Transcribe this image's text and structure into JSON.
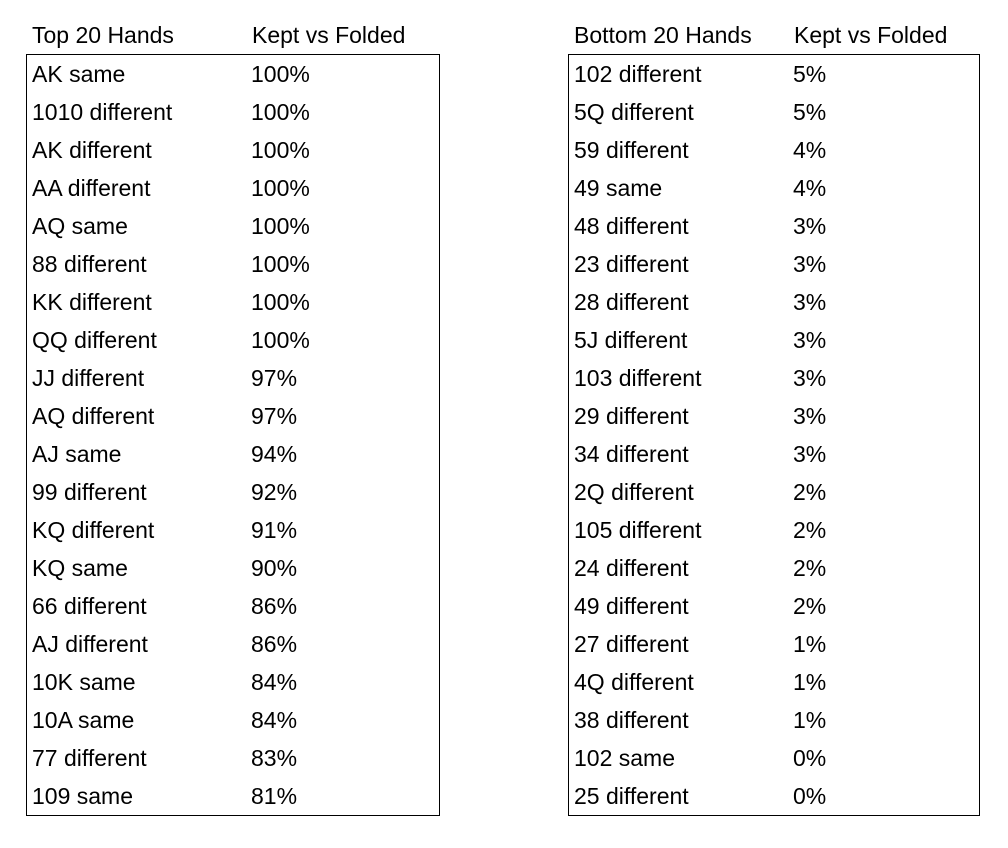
{
  "top_table": {
    "headers": [
      "Top 20 Hands",
      "Kept vs Folded"
    ],
    "rows": [
      [
        "AK same",
        "100%"
      ],
      [
        "1010 different",
        "100%"
      ],
      [
        "AK different",
        "100%"
      ],
      [
        "AA different",
        "100%"
      ],
      [
        "AQ same",
        "100%"
      ],
      [
        "88 different",
        "100%"
      ],
      [
        "KK different",
        "100%"
      ],
      [
        "QQ different",
        "100%"
      ],
      [
        "JJ different",
        "97%"
      ],
      [
        "AQ different",
        "97%"
      ],
      [
        "AJ same",
        "94%"
      ],
      [
        "99 different",
        "92%"
      ],
      [
        "KQ different",
        "91%"
      ],
      [
        "KQ same",
        "90%"
      ],
      [
        "66 different",
        "86%"
      ],
      [
        "AJ different",
        "86%"
      ],
      [
        "10K same",
        "84%"
      ],
      [
        "10A same",
        "84%"
      ],
      [
        "77 different",
        "83%"
      ],
      [
        "109 same",
        "81%"
      ]
    ]
  },
  "bottom_table": {
    "headers": [
      "Bottom 20 Hands",
      "Kept vs Folded"
    ],
    "rows": [
      [
        "102 different",
        "5%"
      ],
      [
        "5Q different",
        "5%"
      ],
      [
        "59 different",
        "4%"
      ],
      [
        "49 same",
        "4%"
      ],
      [
        "48 different",
        "3%"
      ],
      [
        "23 different",
        "3%"
      ],
      [
        "28 different",
        "3%"
      ],
      [
        "5J different",
        "3%"
      ],
      [
        "103 different",
        "3%"
      ],
      [
        "29 different",
        "3%"
      ],
      [
        "34 different",
        "3%"
      ],
      [
        "2Q different",
        "2%"
      ],
      [
        "105 different",
        "2%"
      ],
      [
        "24 different",
        "2%"
      ],
      [
        "49 different",
        "2%"
      ],
      [
        "27 different",
        "1%"
      ],
      [
        "4Q different",
        "1%"
      ],
      [
        "38 different",
        "1%"
      ],
      [
        "102 same",
        "0%"
      ],
      [
        "25 different",
        "0%"
      ]
    ]
  }
}
